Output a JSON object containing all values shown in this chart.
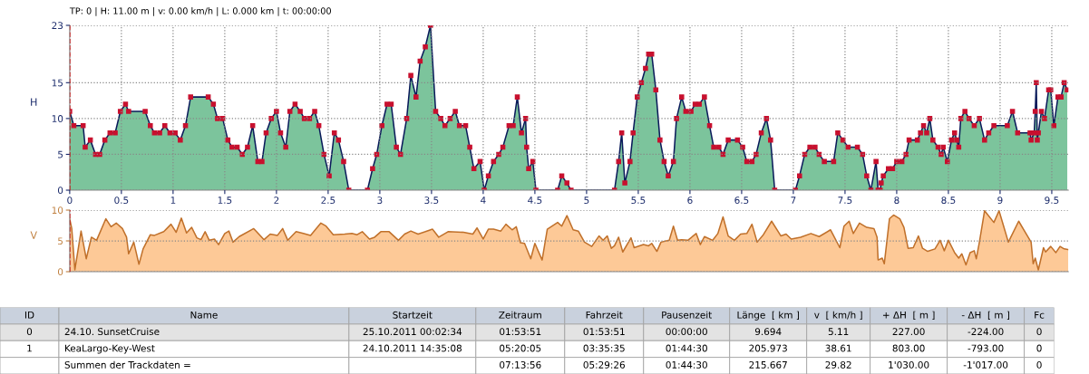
{
  "chart_data": [
    {
      "type": "area",
      "title": "TP: 0 | H: 11.00 m | v: 0.00 km/h | L: 0.000 km | t: 00:00:00",
      "ylabel": "H",
      "marker": "square",
      "grid": true,
      "xlim": [
        0,
        9.66
      ],
      "xticks": [
        0,
        0.5,
        1,
        1.5,
        2,
        2.5,
        3,
        3.5,
        4,
        4.5,
        5,
        5.5,
        6,
        6.5,
        7,
        7.5,
        8,
        8.5,
        9,
        9.5
      ],
      "ylim": [
        0,
        23
      ],
      "yticks": [
        0,
        5,
        10,
        15,
        23
      ],
      "ref_lines": [
        {
          "axis": "x",
          "value": 0,
          "color": "#cc0000",
          "line_style": "dashed"
        }
      ],
      "series": [
        {
          "color": "#7cc49c",
          "x": [
            0.0,
            0.04,
            0.13,
            0.15,
            0.2,
            0.25,
            0.29,
            0.34,
            0.39,
            0.44,
            0.49,
            0.54,
            0.57,
            0.73,
            0.78,
            0.82,
            0.87,
            0.92,
            0.97,
            1.02,
            1.07,
            1.12,
            1.17,
            1.34,
            1.39,
            1.43,
            1.48,
            1.53,
            1.57,
            1.62,
            1.67,
            1.72,
            1.77,
            1.82,
            1.86,
            1.9,
            1.95,
            2.0,
            2.04,
            2.09,
            2.13,
            2.18,
            2.23,
            2.27,
            2.32,
            2.37,
            2.41,
            2.46,
            2.51,
            2.56,
            2.6,
            2.65,
            2.7,
            2.88,
            2.93,
            2.97,
            3.02,
            3.07,
            3.11,
            3.16,
            3.2,
            3.26,
            3.3,
            3.35,
            3.39,
            3.44,
            3.49,
            3.54,
            3.59,
            3.63,
            3.68,
            3.73,
            3.77,
            3.83,
            3.87,
            3.91,
            3.97,
            4.01,
            4.05,
            4.1,
            4.15,
            4.19,
            4.25,
            4.29,
            4.33,
            4.37,
            4.41,
            4.42,
            4.44,
            4.48,
            4.51,
            4.72,
            4.76,
            4.81,
            4.85,
            5.27,
            5.31,
            5.34,
            5.37,
            5.42,
            5.45,
            5.49,
            5.53,
            5.57,
            5.6,
            5.63,
            5.67,
            5.71,
            5.75,
            5.79,
            5.84,
            5.87,
            5.92,
            5.96,
            6.01,
            6.05,
            6.09,
            6.14,
            6.19,
            6.23,
            6.28,
            6.32,
            6.37,
            6.46,
            6.51,
            6.55,
            6.6,
            6.64,
            6.69,
            6.74,
            6.78,
            6.82,
            7.02,
            7.06,
            7.11,
            7.16,
            7.21,
            7.25,
            7.3,
            7.39,
            7.43,
            7.48,
            7.53,
            7.62,
            7.67,
            7.71,
            7.75,
            7.8,
            7.82,
            7.84,
            7.85,
            7.87,
            7.92,
            7.96,
            8.0,
            8.05,
            8.09,
            8.12,
            8.2,
            8.23,
            8.26,
            8.29,
            8.32,
            8.35,
            8.4,
            8.43,
            8.45,
            8.49,
            8.53,
            8.56,
            8.58,
            8.6,
            8.62,
            8.66,
            8.7,
            8.75,
            8.8,
            8.85,
            8.89,
            8.94,
            9.07,
            9.12,
            9.17,
            9.29,
            9.3,
            9.33,
            9.34,
            9.35,
            9.36,
            9.37,
            9.4,
            9.43,
            9.47,
            9.49,
            9.52,
            9.56,
            9.59,
            9.62,
            9.65
          ],
          "values": [
            11,
            9,
            9,
            6,
            7,
            5,
            5,
            7,
            8,
            8,
            11,
            12,
            11,
            11,
            9,
            8,
            8,
            9,
            8,
            8,
            7,
            9,
            13,
            13,
            12,
            10,
            10,
            7,
            6,
            6,
            5,
            6,
            9,
            4,
            4,
            8,
            10,
            11,
            8,
            6,
            11,
            12,
            11,
            10,
            10,
            11,
            9,
            5,
            2,
            8,
            7,
            4,
            0,
            0,
            3,
            5,
            9,
            12,
            12,
            6,
            5,
            10,
            16,
            13,
            18,
            20,
            23,
            11,
            10,
            9,
            10,
            11,
            9,
            9,
            6,
            3,
            4,
            0,
            2,
            4,
            5,
            6,
            9,
            9,
            13,
            8,
            10,
            6,
            3,
            4,
            0,
            0,
            2,
            1,
            0,
            0,
            4,
            8,
            1,
            4,
            8,
            13,
            15,
            17,
            19,
            19,
            14,
            7,
            4,
            2,
            4,
            10,
            13,
            11,
            11,
            12,
            12,
            13,
            9,
            6,
            6,
            5,
            7,
            7,
            6,
            4,
            4,
            5,
            8,
            10,
            7,
            0,
            0,
            2,
            5,
            6,
            6,
            5,
            4,
            4,
            8,
            7,
            6,
            6,
            5,
            2,
            0,
            4,
            0,
            0,
            1,
            2,
            3,
            3,
            4,
            4,
            5,
            7,
            7,
            8,
            9,
            8,
            10,
            7,
            6,
            5,
            6,
            4,
            7,
            8,
            7,
            6,
            10,
            11,
            10,
            9,
            10,
            7,
            8,
            9,
            9,
            11,
            8,
            8,
            7,
            8,
            11,
            15,
            7,
            8,
            11,
            10,
            14,
            14,
            9,
            13,
            13,
            15,
            14
          ]
        }
      ]
    },
    {
      "type": "area",
      "ylabel": "V",
      "grid": "y",
      "tick_labels": "y",
      "xlim": [
        0,
        9.66
      ],
      "ylim": [
        0,
        10
      ],
      "yticks": [
        0,
        5,
        10
      ],
      "ref_lines": [
        {
          "axis": "x",
          "value": 0,
          "color": "#cc0000",
          "line_style": "dashed"
        }
      ],
      "series": [
        {
          "color": "#fdc997",
          "x": [
            0.0,
            0.02,
            0.05,
            0.11,
            0.16,
            0.21,
            0.26,
            0.35,
            0.4,
            0.45,
            0.51,
            0.55,
            0.57,
            0.62,
            0.67,
            0.71,
            0.78,
            0.82,
            0.91,
            0.98,
            1.03,
            1.08,
            1.13,
            1.18,
            1.23,
            1.27,
            1.31,
            1.35,
            1.4,
            1.44,
            1.5,
            1.54,
            1.58,
            1.64,
            1.78,
            1.88,
            1.94,
            2.01,
            2.06,
            2.11,
            2.19,
            2.26,
            2.33,
            2.43,
            2.48,
            2.55,
            2.66,
            2.73,
            2.78,
            2.83,
            2.9,
            2.95,
            3.01,
            3.09,
            3.18,
            3.24,
            3.3,
            3.37,
            3.51,
            3.57,
            3.66,
            3.81,
            3.9,
            3.94,
            4.0,
            4.05,
            4.1,
            4.17,
            4.22,
            4.28,
            4.32,
            4.36,
            4.4,
            4.46,
            4.5,
            4.57,
            4.62,
            4.72,
            4.76,
            4.81,
            4.87,
            4.92,
            4.98,
            5.05,
            5.12,
            5.16,
            5.2,
            5.24,
            5.27,
            5.31,
            5.35,
            5.43,
            5.46,
            5.55,
            5.6,
            5.63,
            5.68,
            5.72,
            5.8,
            5.84,
            5.88,
            5.92,
            5.98,
            6.06,
            6.1,
            6.14,
            6.22,
            6.27,
            6.32,
            6.37,
            6.43,
            6.49,
            6.55,
            6.6,
            6.65,
            6.71,
            6.79,
            6.88,
            6.93,
            6.98,
            7.07,
            7.17,
            7.25,
            7.36,
            7.45,
            7.49,
            7.54,
            7.58,
            7.64,
            7.71,
            7.78,
            7.81,
            7.82,
            7.86,
            7.88,
            7.93,
            7.97,
            8.03,
            8.07,
            8.11,
            8.16,
            8.21,
            8.25,
            8.3,
            8.37,
            8.42,
            8.46,
            8.5,
            8.56,
            8.6,
            8.63,
            8.67,
            8.71,
            8.75,
            8.77,
            8.8,
            8.85,
            8.94,
            8.99,
            9.08,
            9.18,
            9.3,
            9.32,
            9.34,
            9.37,
            9.42,
            9.44,
            9.49,
            9.54,
            9.58,
            9.62,
            9.66
          ],
          "values": [
            8.6,
            7.0,
            0.3,
            6.6,
            2.1,
            5.6,
            5.1,
            8.6,
            7.3,
            7.9,
            7.0,
            5.6,
            2.9,
            4.8,
            1.2,
            3.7,
            6.0,
            5.9,
            6.5,
            7.7,
            6.4,
            8.7,
            6.3,
            7.2,
            5.5,
            5.2,
            6.5,
            5.1,
            5.3,
            4.4,
            6.2,
            6.6,
            4.8,
            5.7,
            7.0,
            5.2,
            6.1,
            5.9,
            7.0,
            5.1,
            6.5,
            6.2,
            5.9,
            7.9,
            7.4,
            6.0,
            6.1,
            6.2,
            6.0,
            6.5,
            5.3,
            5.6,
            6.5,
            6.5,
            5.1,
            6.1,
            6.6,
            6.1,
            6.9,
            5.6,
            6.5,
            6.4,
            6.1,
            7.1,
            5.3,
            6.9,
            6.9,
            6.6,
            7.7,
            6.8,
            7.3,
            4.7,
            4.6,
            2.1,
            4.6,
            1.9,
            6.9,
            8.0,
            7.4,
            9.1,
            6.8,
            6.6,
            4.8,
            4.1,
            5.8,
            5.1,
            5.8,
            3.8,
            4.2,
            5.6,
            3.2,
            5.5,
            3.9,
            4.4,
            4.2,
            4.6,
            3.3,
            4.8,
            5.1,
            7.4,
            5.1,
            5.2,
            5.1,
            6.2,
            4.4,
            5.7,
            5.1,
            6.2,
            8.9,
            5.8,
            5.1,
            6.1,
            6.2,
            7.7,
            4.8,
            6.0,
            8.2,
            5.8,
            6.1,
            5.3,
            5.6,
            6.2,
            5.7,
            6.8,
            3.9,
            7.4,
            8.2,
            6.2,
            7.9,
            7.2,
            7.0,
            5.6,
            1.9,
            2.2,
            1.3,
            8.6,
            9.2,
            8.6,
            7.2,
            3.8,
            3.9,
            5.8,
            3.8,
            3.3,
            3.7,
            5.1,
            3.4,
            5.1,
            3.1,
            2.2,
            2.9,
            1.1,
            3.1,
            3.4,
            2.1,
            4.8,
            9.9,
            8.0,
            9.9,
            4.8,
            8.2,
            4.8,
            1.3,
            2.2,
            0.3,
            3.9,
            3.2,
            4.1,
            3.1,
            4.1,
            3.7,
            3.6
          ]
        }
      ]
    },
    {
      "type": "other",
      "categories": [
        "ID",
        "Name",
        "Startzeit",
        "Zeitraum",
        "Fahrzeit",
        "Pausenzeit",
        "Länge  [ km ]",
        "v  [ km/h ]",
        "+ ΔH  [ m ]",
        "- ΔH  [ m ]",
        "Fc"
      ],
      "annotations": [
        "0",
        "24.10. SunsetCruise",
        "25.10.2011 00:02:34",
        "01:53:51",
        "01:53:51",
        "00:00:00",
        "9.694",
        "5.11",
        "227.00",
        "-224.00",
        "0",
        "1",
        "KeaLargo-Key-West",
        "24.10.2011 14:35:08",
        "05:20:05",
        "03:35:35",
        "01:44:30",
        "205.973",
        "38.61",
        "803.00",
        "-793.00",
        "0",
        null,
        "Summen der Trackdaten =",
        null,
        "07:13:56",
        "05:29:26",
        "01:44:30",
        "215.667",
        "29.82",
        "1'030.00",
        "-1'017.00",
        "0"
      ]
    }
  ]
}
